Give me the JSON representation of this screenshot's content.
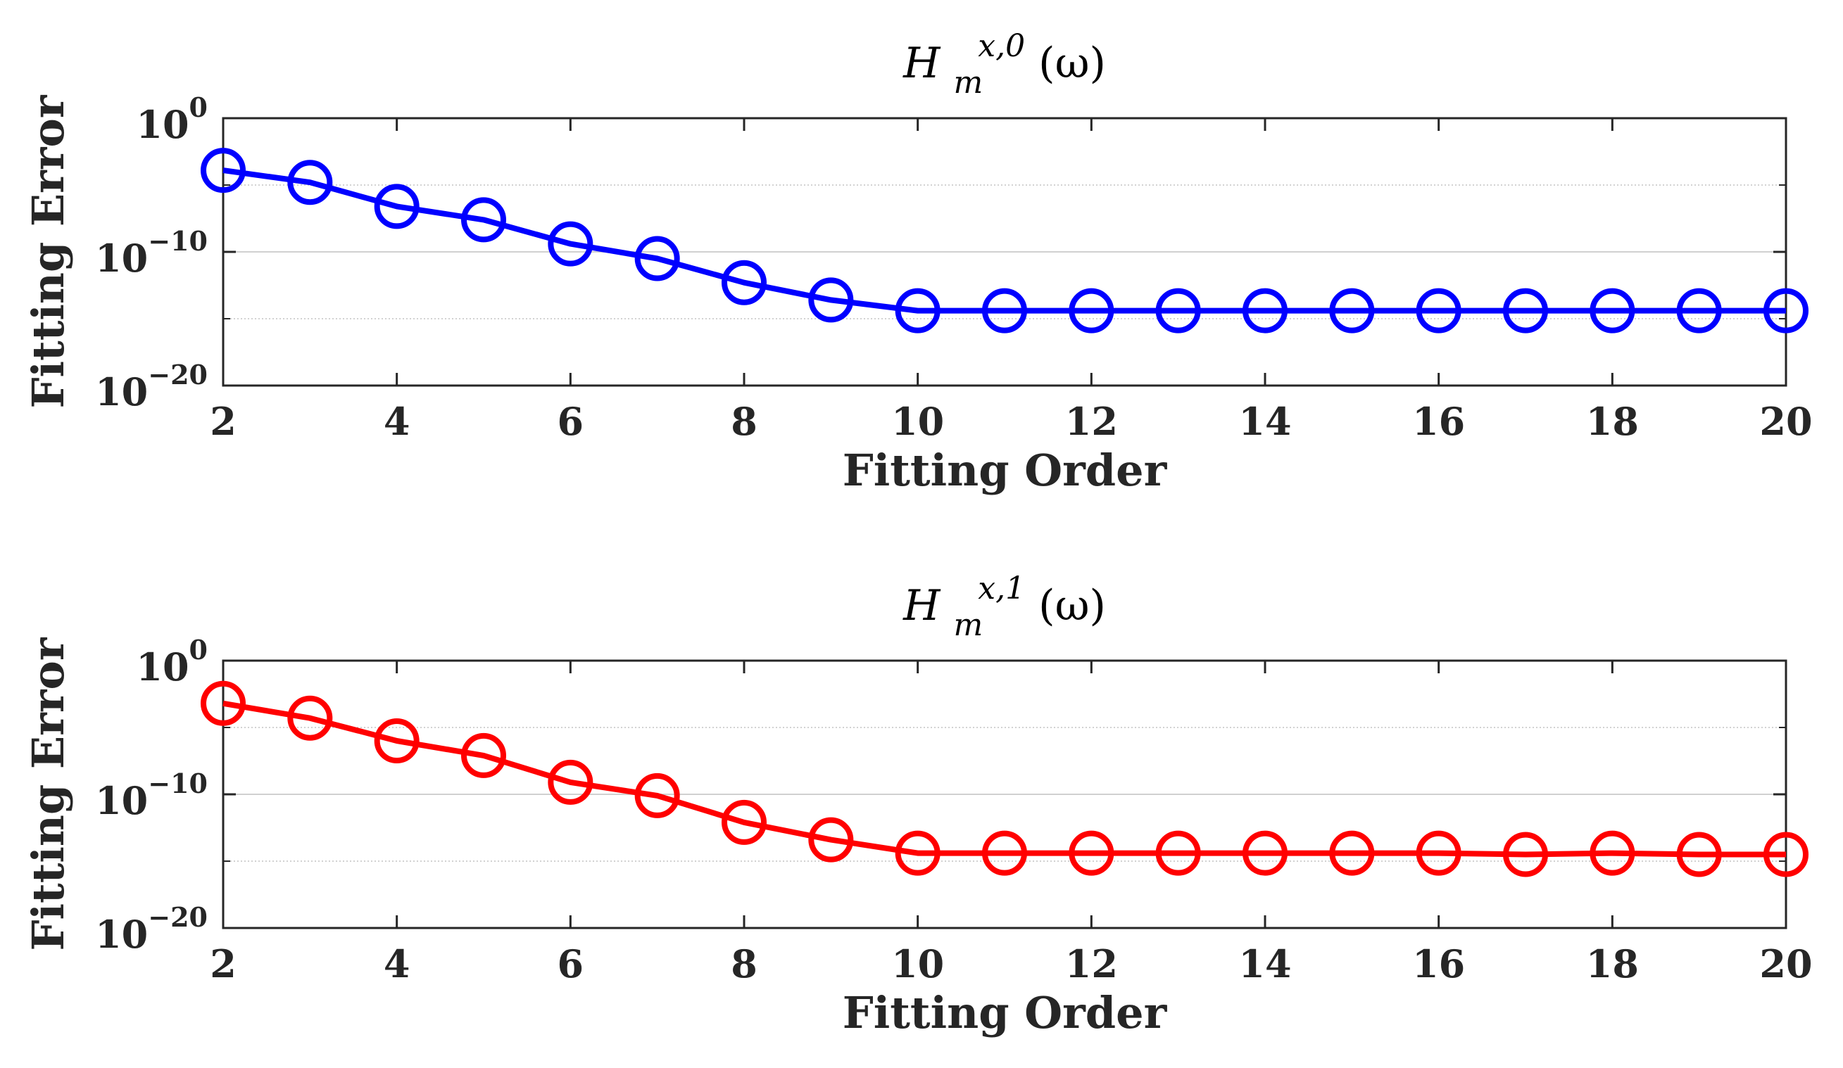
{
  "chart_data": [
    {
      "type": "line",
      "title": {
        "base": "H",
        "sub": "m",
        "sup": "x,0",
        "arg": "(ω)"
      },
      "xlabel": "Fitting Order",
      "ylabel": "Fitting Error",
      "x": [
        2,
        3,
        4,
        5,
        6,
        7,
        8,
        9,
        10,
        11,
        12,
        13,
        14,
        15,
        16,
        17,
        18,
        19,
        20
      ],
      "xticks": [
        "2",
        "4",
        "6",
        "8",
        "10",
        "12",
        "14",
        "16",
        "18",
        "20"
      ],
      "yscale": "log",
      "ylim_exponent": [
        -20,
        0
      ],
      "ytick_exponents": [
        0,
        -10,
        -20
      ],
      "ytick_base": "10",
      "grid": true,
      "series": [
        {
          "color": "#0000ff",
          "marker": "circle-open",
          "log10_values": [
            -3.9,
            -4.8,
            -6.6,
            -7.6,
            -9.4,
            -10.5,
            -12.3,
            -13.6,
            -14.4,
            -14.4,
            -14.4,
            -14.4,
            -14.4,
            -14.4,
            -14.4,
            -14.4,
            -14.4,
            -14.4,
            -14.4
          ]
        }
      ]
    },
    {
      "type": "line",
      "title": {
        "base": "H",
        "sub": "m",
        "sup": "x,1",
        "arg": "(ω)"
      },
      "xlabel": "Fitting Order",
      "ylabel": "Fitting Error",
      "x": [
        2,
        3,
        4,
        5,
        6,
        7,
        8,
        9,
        10,
        11,
        12,
        13,
        14,
        15,
        16,
        17,
        18,
        19,
        20
      ],
      "xticks": [
        "2",
        "4",
        "6",
        "8",
        "10",
        "12",
        "14",
        "16",
        "18",
        "20"
      ],
      "yscale": "log",
      "ylim_exponent": [
        -20,
        0
      ],
      "ytick_exponents": [
        0,
        -10,
        -20
      ],
      "ytick_base": "10",
      "grid": true,
      "series": [
        {
          "color": "#ff0000",
          "marker": "circle-open",
          "log10_values": [
            -3.2,
            -4.3,
            -6.0,
            -7.1,
            -9.1,
            -10.1,
            -12.1,
            -13.4,
            -14.4,
            -14.4,
            -14.4,
            -14.4,
            -14.4,
            -14.4,
            -14.4,
            -14.5,
            -14.4,
            -14.5,
            -14.5
          ]
        }
      ]
    }
  ]
}
